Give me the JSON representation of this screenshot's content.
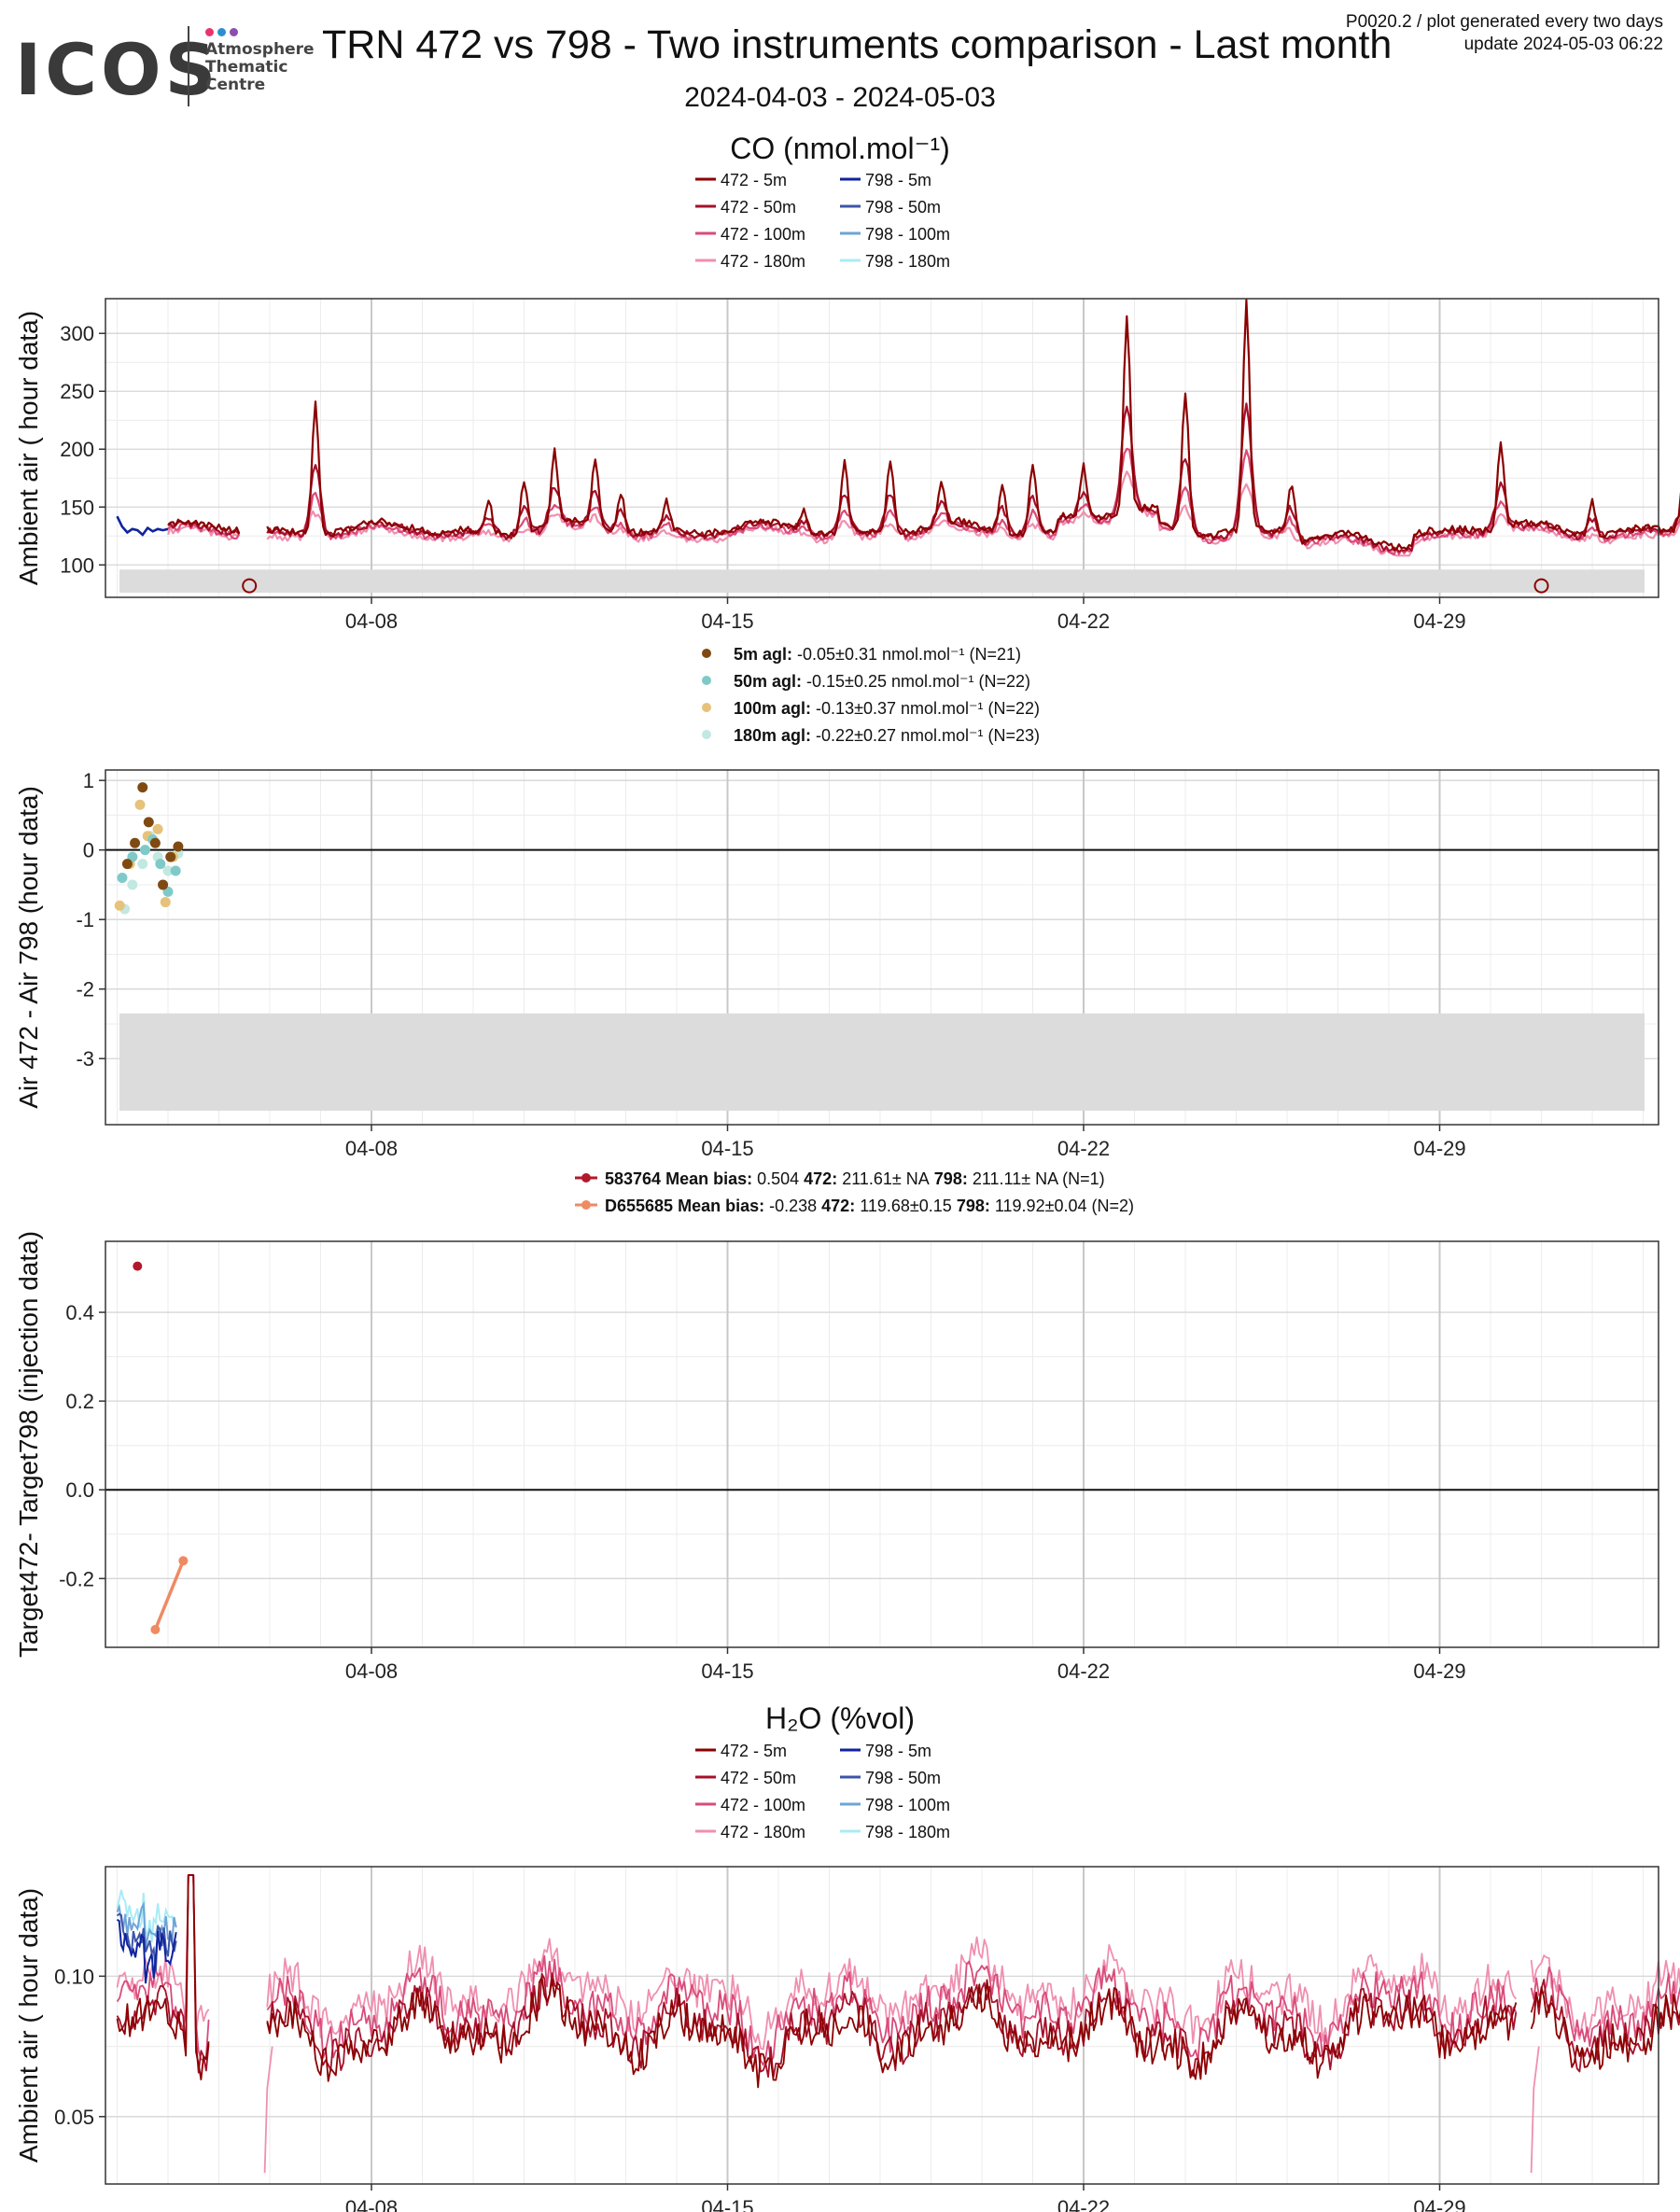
{
  "header": {
    "logo_text": "ICOS",
    "logo_sub": [
      "Atmosphere",
      "Thematic",
      "Centre"
    ],
    "logo_dot_colors": [
      "#e8336f",
      "#2b8fd0",
      "#8a4fb0"
    ],
    "title": "TRN 472 vs 798 - Two instruments comparison - Last month",
    "info_line1": "P0020.2 / plot generated every two days",
    "info_line2": "update  2024-05-03 06:22",
    "date_range": "2024-04-03 - 2024-05-03"
  },
  "colors": {
    "s472": [
      "#8b0000",
      "#a5112b",
      "#d94b79",
      "#f08fb0"
    ],
    "s798": [
      "#10239e",
      "#3d55a8",
      "#6fa4d6",
      "#a8ecf5"
    ],
    "diff": [
      "#7f4a12",
      "#7fcac8",
      "#e6c27a",
      "#c2e8e2"
    ],
    "target": [
      "#b2182b",
      "#ef8a62"
    ],
    "band": "#dcdcdc"
  },
  "chart_data": [
    {
      "id": "co_ambient",
      "type": "line",
      "title": "CO (nmol.mol⁻¹)",
      "ylabel": "Ambient air ( hour data)",
      "x_ticks": [
        "04-08",
        "04-15",
        "04-22",
        "04-29"
      ],
      "x_range": [
        "2024-04-03",
        "2024-05-03"
      ],
      "ylim": [
        72,
        330
      ],
      "y_ticks": [
        100,
        150,
        200,
        250,
        300
      ],
      "legend": [
        {
          "name": "472 - 5m"
        },
        {
          "name": "798 - 5m"
        },
        {
          "name": "472 - 50m"
        },
        {
          "name": "798 - 50m"
        },
        {
          "name": "472 - 100m"
        },
        {
          "name": "798 - 100m"
        },
        {
          "name": "472 - 180m"
        },
        {
          "name": "798 - 180m"
        }
      ],
      "series_798": {
        "name": "798 - 5m",
        "x": [
          3.0,
          3.1,
          3.2,
          3.3,
          3.4,
          3.5,
          3.6,
          3.7,
          3.8,
          3.9,
          4.0
        ],
        "y": [
          142,
          133,
          128,
          131,
          130,
          126,
          132,
          129,
          131,
          130,
          131
        ]
      },
      "peaks_472": [
        {
          "x": 6.9,
          "y": 243
        },
        {
          "x": 10.3,
          "y": 158
        },
        {
          "x": 11.0,
          "y": 175
        },
        {
          "x": 11.6,
          "y": 193
        },
        {
          "x": 12.4,
          "y": 190
        },
        {
          "x": 12.9,
          "y": 165
        },
        {
          "x": 13.8,
          "y": 155
        },
        {
          "x": 16.5,
          "y": 150
        },
        {
          "x": 17.3,
          "y": 190
        },
        {
          "x": 18.2,
          "y": 193
        },
        {
          "x": 19.2,
          "y": 165
        },
        {
          "x": 20.4,
          "y": 172
        },
        {
          "x": 21.0,
          "y": 190
        },
        {
          "x": 22.0,
          "y": 175
        },
        {
          "x": 22.85,
          "y": 300
        },
        {
          "x": 24.0,
          "y": 250
        },
        {
          "x": 25.2,
          "y": 330
        },
        {
          "x": 26.1,
          "y": 180
        },
        {
          "x": 30.2,
          "y": 203
        },
        {
          "x": 32.0,
          "y": 160
        },
        {
          "x": 33.8,
          "y": 175
        }
      ],
      "flag_markers": [
        {
          "x": 5.6,
          "y": 82
        },
        {
          "x": 31.0,
          "y": 82
        }
      ],
      "band": [
        76,
        96
      ]
    },
    {
      "id": "co_diff",
      "type": "scatter",
      "ylabel": "Air 472 - Air 798 (hour data)",
      "x_ticks": [
        "04-08",
        "04-15",
        "04-22",
        "04-29"
      ],
      "ylim": [
        -3.95,
        1.15
      ],
      "y_ticks": [
        1,
        0,
        -1,
        -2,
        -3
      ],
      "legend": [
        {
          "label": "5m agl:",
          "text": " -0.05±0.31 nmol.mol⁻¹   (N=21)"
        },
        {
          "label": "50m agl:",
          "text": " -0.15±0.25 nmol.mol⁻¹   (N=22)"
        },
        {
          "label": "100m agl:",
          "text": " -0.13±0.37 nmol.mol⁻¹   (N=22)"
        },
        {
          "label": "180m agl:",
          "text": " -0.22±0.27 nmol.mol⁻¹   (N=23)"
        }
      ],
      "series": [
        {
          "name": "5m agl",
          "x": [
            3.2,
            3.35,
            3.5,
            3.62,
            3.75,
            3.9,
            4.05,
            4.2
          ],
          "y": [
            -0.2,
            0.1,
            0.9,
            0.4,
            0.1,
            -0.5,
            -0.1,
            0.05
          ]
        },
        {
          "name": "50m agl",
          "x": [
            3.1,
            3.3,
            3.55,
            3.7,
            3.85,
            4.0,
            4.15
          ],
          "y": [
            -0.4,
            -0.1,
            0.0,
            0.15,
            -0.2,
            -0.6,
            -0.3
          ]
        },
        {
          "name": "100m agl",
          "x": [
            3.05,
            3.25,
            3.45,
            3.6,
            3.8,
            3.95,
            4.1
          ],
          "y": [
            -0.8,
            -0.2,
            0.65,
            0.2,
            0.3,
            -0.75,
            -0.1
          ]
        },
        {
          "name": "180m agl",
          "x": [
            3.15,
            3.3,
            3.5,
            3.65,
            3.8,
            4.0,
            4.2
          ],
          "y": [
            -0.85,
            -0.5,
            -0.2,
            0.2,
            -0.1,
            -0.3,
            -0.05
          ]
        }
      ],
      "band": [
        -3.75,
        -2.35
      ]
    },
    {
      "id": "co_target",
      "type": "line",
      "ylabel": "Target472- Target798 (injection data)",
      "x_ticks": [
        "04-08",
        "04-15",
        "04-22",
        "04-29"
      ],
      "ylim": [
        -0.355,
        0.56
      ],
      "y_ticks": [
        0.4,
        0.2,
        0.0,
        -0.2
      ],
      "legend": [
        {
          "name": "583764",
          "bias_label": "Mean bias:",
          "bias": " 0.504",
          "a_label": "472:",
          "a": " 211.61± NA",
          "b_label": "798:",
          "b": " 211.11± NA (N=1)"
        },
        {
          "name": "D655685",
          "bias_label": "Mean bias:",
          "bias": " -0.238",
          "a_label": "472:",
          "a": " 119.68±0.15",
          "b_label": "798:",
          "b": " 119.92±0.04 (N=2)"
        }
      ],
      "series": [
        {
          "name": "583764",
          "x": [
            3.4
          ],
          "y": [
            0.504
          ]
        },
        {
          "name": "D655685",
          "x": [
            3.75,
            4.3
          ],
          "y": [
            -0.315,
            -0.16
          ]
        }
      ]
    },
    {
      "id": "h2o_ambient",
      "type": "line",
      "title": "H₂O (%vol)",
      "ylabel": "Ambient air ( hour data)",
      "x_ticks": [
        "04-08",
        "04-15",
        "04-22",
        "04-29"
      ],
      "ylim": [
        0.026,
        0.139
      ],
      "y_ticks": [
        0.1,
        0.05
      ],
      "legend": [
        {
          "name": "472 - 5m"
        },
        {
          "name": "798 - 5m"
        },
        {
          "name": "472 - 50m"
        },
        {
          "name": "798 - 50m"
        },
        {
          "name": "472 - 100m"
        },
        {
          "name": "798 - 100m"
        },
        {
          "name": "472 - 180m"
        },
        {
          "name": "798 - 180m"
        }
      ],
      "dips_472": [
        {
          "x": 5.9,
          "y": 0.03
        },
        {
          "x": 30.8,
          "y": 0.03
        }
      ]
    }
  ]
}
